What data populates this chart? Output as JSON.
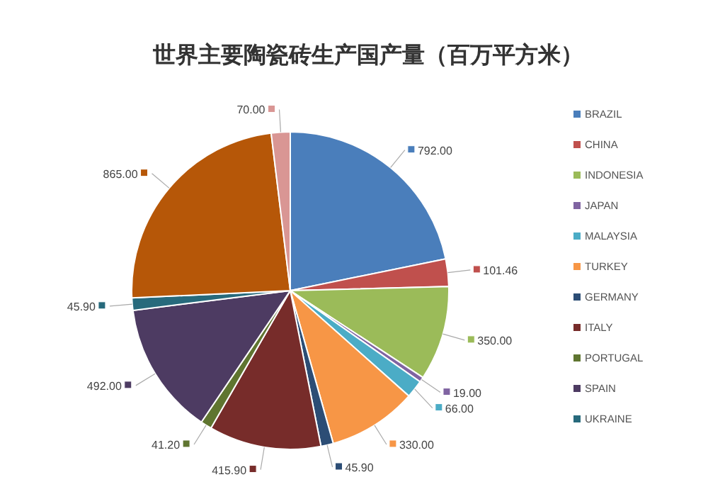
{
  "chart_data": {
    "type": "pie",
    "title": "世界主要陶瓷砖生产国产量（百万平方米）",
    "categories": [
      "BRAZIL",
      "CHINA",
      "INDONESIA",
      "JAPAN",
      "MALAYSIA",
      "TURKEY",
      "GERMANY",
      "ITALY",
      "PORTUGAL",
      "SPAIN",
      "UKRAINE",
      null,
      null
    ],
    "values": [
      792,
      101.46,
      350,
      19,
      66,
      330,
      45.9,
      415.9,
      41.2,
      492,
      45.9,
      865,
      70
    ],
    "value_labels": [
      "792.00",
      "101.46",
      "350.00",
      "19.00",
      "66.00",
      "330.00",
      "45.90",
      "415.90",
      "41.20",
      "492.00",
      "45.90",
      "865.00",
      "70.00"
    ],
    "colors": [
      "#4a7ebb",
      "#c0504d",
      "#9bbb59",
      "#8064a2",
      "#4bacc6",
      "#f79646",
      "#2c4d75",
      "#772c2a",
      "#5f7530",
      "#4d3b62",
      "#276a7c",
      "#b65708",
      "#d99694"
    ],
    "legend": "right"
  }
}
